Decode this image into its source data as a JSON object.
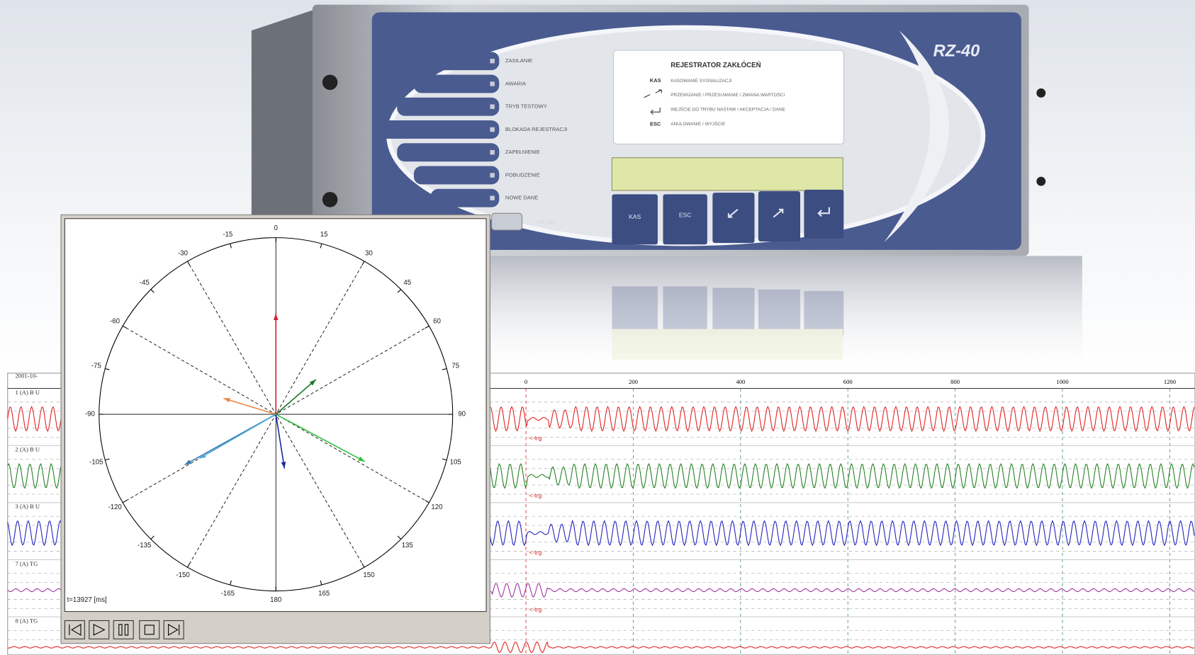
{
  "device": {
    "model": "RZ-40",
    "panel_title": "REJESTRATOR ZAKŁÓCEŃ",
    "legend": [
      {
        "key": "KAS",
        "text": "KASOWANIE SYGNALIZACJI"
      },
      {
        "text": "PRZEWIJANIE / PRZESUWANIE / ZMIANA WARTOŚCI"
      },
      {
        "text": "WEJŚCIE DO TRYBU NASTAW / AKCEPTACJA / DANE"
      },
      {
        "key": "ESC",
        "text": "ANULOWANIE / WYJŚCIE"
      }
    ],
    "indicators": [
      "ZASILANIE",
      "AWARIA",
      "TRYB TESTOWY",
      "BLOKADA REJESTRACJI",
      "ZAPEŁNIENIE",
      "POBUDZENIE",
      "NOWE DANE"
    ],
    "connector": "RS 232",
    "buttons": [
      "KAS",
      "ESC"
    ]
  },
  "phasor_plot": {
    "time_label": "t=13927 [ms]",
    "angle_ticks": [
      0,
      15,
      30,
      45,
      60,
      75,
      90,
      105,
      120,
      135,
      150,
      165,
      180,
      -165,
      -150,
      -135,
      -120,
      -105,
      -90,
      -75,
      -60,
      -45,
      -30,
      -15
    ],
    "phasors": [
      {
        "color": "#d02030",
        "angle": 0,
        "magnitude": 0.57
      },
      {
        "color": "#1a7a2a",
        "angle": 49,
        "magnitude": 0.3
      },
      {
        "color": "#e8884a",
        "angle": -73,
        "magnitude": 0.31
      },
      {
        "color": "#30c040",
        "angle": 118,
        "magnitude": 0.57
      },
      {
        "color": "#1a2aa0",
        "angle": 171,
        "magnitude": 0.31
      },
      {
        "color": "#3a7ab0",
        "angle": -119,
        "magnitude": 0.59
      },
      {
        "color": "#50a8d8",
        "angle": -120,
        "magnitude": 0.5
      }
    ]
  },
  "waveforms": {
    "date": "2001-10-",
    "xlim": [
      -966,
      1247
    ],
    "xticks": [
      0,
      200,
      400,
      600,
      800,
      1000,
      1200
    ],
    "channels": [
      {
        "label": "1 (A) B U",
        "color": "#e02020",
        "trigger": "<-trg"
      },
      {
        "label": "2 (A) B U",
        "color": "#208020",
        "trigger": "<-trg"
      },
      {
        "label": "3 (A) B U",
        "color": "#2020c0",
        "trigger": "<-trg"
      },
      {
        "label": "7 (A) TG",
        "color": "#a030a0",
        "trigger": "<-trg"
      },
      {
        "label": "8 (A) TG",
        "color": "#e02020"
      }
    ]
  }
}
